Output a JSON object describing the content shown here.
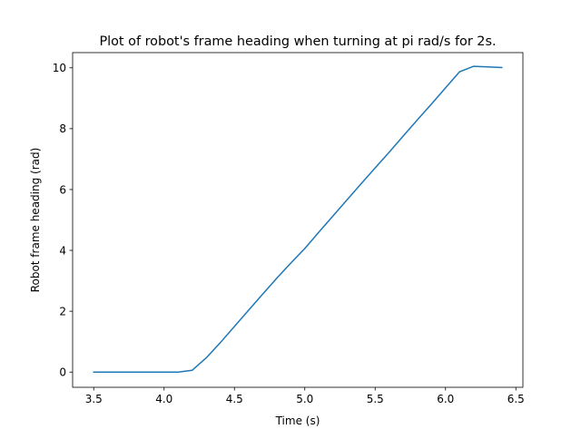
{
  "chart_data": {
    "type": "line",
    "title": "Plot of robot's frame heading when turning at pi rad/s for 2s.",
    "xlabel": "Time (s)",
    "ylabel": "Robot frame heading (rad)",
    "xlim": [
      3.35,
      6.55
    ],
    "ylim": [
      -0.5,
      10.5
    ],
    "x_ticks": [
      3.5,
      4.0,
      4.5,
      5.0,
      5.5,
      6.0,
      6.5
    ],
    "x_tick_labels": [
      "3.5",
      "4.0",
      "4.5",
      "5.0",
      "5.5",
      "6.0",
      "6.5"
    ],
    "y_ticks": [
      0,
      2,
      4,
      6,
      8,
      10
    ],
    "y_tick_labels": [
      "0",
      "2",
      "4",
      "6",
      "8",
      "10"
    ],
    "grid": false,
    "series": [
      {
        "color": "#1f77b4",
        "x": [
          3.5,
          3.6,
          3.7,
          3.8,
          3.9,
          4.0,
          4.1,
          4.2,
          4.3,
          4.4,
          4.5,
          4.6,
          4.7,
          4.8,
          4.9,
          5.0,
          5.1,
          5.2,
          5.3,
          5.4,
          5.5,
          5.6,
          5.7,
          5.8,
          5.9,
          6.0,
          6.1,
          6.2,
          6.3,
          6.4
        ],
        "y": [
          0.0,
          0.0,
          0.0,
          0.0,
          0.0,
          0.0,
          0.0,
          0.06,
          0.47,
          0.97,
          1.5,
          2.03,
          2.56,
          3.08,
          3.58,
          4.06,
          4.6,
          5.13,
          5.66,
          6.19,
          6.71,
          7.23,
          7.76,
          8.29,
          8.81,
          9.34,
          9.87,
          10.05,
          10.03,
          10.01
        ]
      }
    ]
  }
}
